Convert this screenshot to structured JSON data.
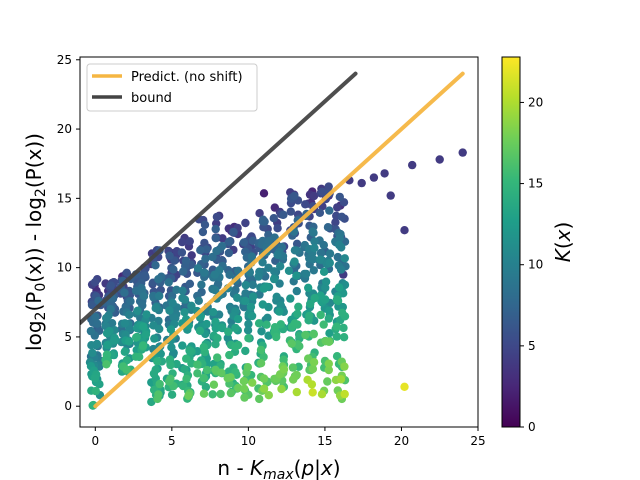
{
  "chart_data": {
    "type": "scatter",
    "xlabel": "n - K_max(p|x)",
    "ylabel": "log2(P0(x)) - log2(P(x))",
    "xlim": [
      -1,
      25
    ],
    "ylim": [
      -1.5,
      25.2
    ],
    "xticks": [
      0,
      5,
      10,
      15,
      20,
      25
    ],
    "yticks": [
      0,
      5,
      10,
      15,
      20,
      25
    ],
    "grid": false,
    "legend_position": "top-left",
    "legend": [
      {
        "label": "Predict. (no shift)",
        "color": "#f5b642"
      },
      {
        "label": "bound",
        "color": "#444444"
      }
    ],
    "lines": [
      {
        "name": "Predict. (no shift)",
        "x": [
          0,
          24
        ],
        "y": [
          0,
          24
        ],
        "color": "#f5b642"
      },
      {
        "name": "bound",
        "x": [
          -1,
          17
        ],
        "y": [
          6,
          24
        ],
        "color": "#444444"
      }
    ],
    "colorbar": {
      "label": "K(x)",
      "min": 0,
      "max": 22.8,
      "ticks": [
        0,
        5,
        10,
        15,
        20
      ],
      "colors": [
        "#440154",
        "#482878",
        "#3e4989",
        "#31688e",
        "#26828e",
        "#1f9e89",
        "#35b779",
        "#6ece58",
        "#b5de2b",
        "#fde725"
      ]
    },
    "clusters": [
      {
        "x": 0,
        "ymin": 0,
        "ymax": 9.2
      },
      {
        "x": 1,
        "ymin": 3,
        "ymax": 9
      },
      {
        "x": 2,
        "ymin": 2.4,
        "ymax": 9.8
      },
      {
        "x": 3,
        "ymin": 3.5,
        "ymax": 10
      },
      {
        "x": 4,
        "ymin": 0.3,
        "ymax": 12
      },
      {
        "x": 5,
        "ymin": 0.8,
        "ymax": 11.5
      },
      {
        "x": 6,
        "ymin": 0.5,
        "ymax": 12.5
      },
      {
        "x": 7,
        "ymin": 0.6,
        "ymax": 13.5
      },
      {
        "x": 8,
        "ymin": 0.8,
        "ymax": 13.8
      },
      {
        "x": 9,
        "ymin": 0.7,
        "ymax": 13.3
      },
      {
        "x": 10,
        "ymin": 0.6,
        "ymax": 13.5
      },
      {
        "x": 11,
        "ymin": 0.4,
        "ymax": 15.4
      },
      {
        "x": 12,
        "ymin": 0.8,
        "ymax": 14.5
      },
      {
        "x": 13,
        "ymin": 0.9,
        "ymax": 15.5
      },
      {
        "x": 14,
        "ymin": 1.1,
        "ymax": 15.8
      },
      {
        "x": 15,
        "ymin": 0.8,
        "ymax": 16
      },
      {
        "x": 16,
        "ymin": 0.5,
        "ymax": 15.5
      }
    ],
    "outliers": [
      {
        "x": 16.6,
        "y": 16.3,
        "k": 4
      },
      {
        "x": 17.4,
        "y": 16.1,
        "k": 4
      },
      {
        "x": 18.2,
        "y": 16.5,
        "k": 4
      },
      {
        "x": 18.9,
        "y": 16.8,
        "k": 4
      },
      {
        "x": 19.3,
        "y": 15.2,
        "k": 4
      },
      {
        "x": 20.7,
        "y": 17.4,
        "k": 4
      },
      {
        "x": 22.5,
        "y": 17.8,
        "k": 4
      },
      {
        "x": 24.0,
        "y": 18.3,
        "k": 4
      },
      {
        "x": 20.2,
        "y": 12.7,
        "k": 4
      },
      {
        "x": 20.2,
        "y": 1.4,
        "k": 22
      },
      {
        "x": 16.2,
        "y": 9.5,
        "k": 4
      },
      {
        "x": 14.2,
        "y": 1.0,
        "k": 21
      },
      {
        "x": 16.1,
        "y": 2.2,
        "k": 18
      }
    ]
  }
}
